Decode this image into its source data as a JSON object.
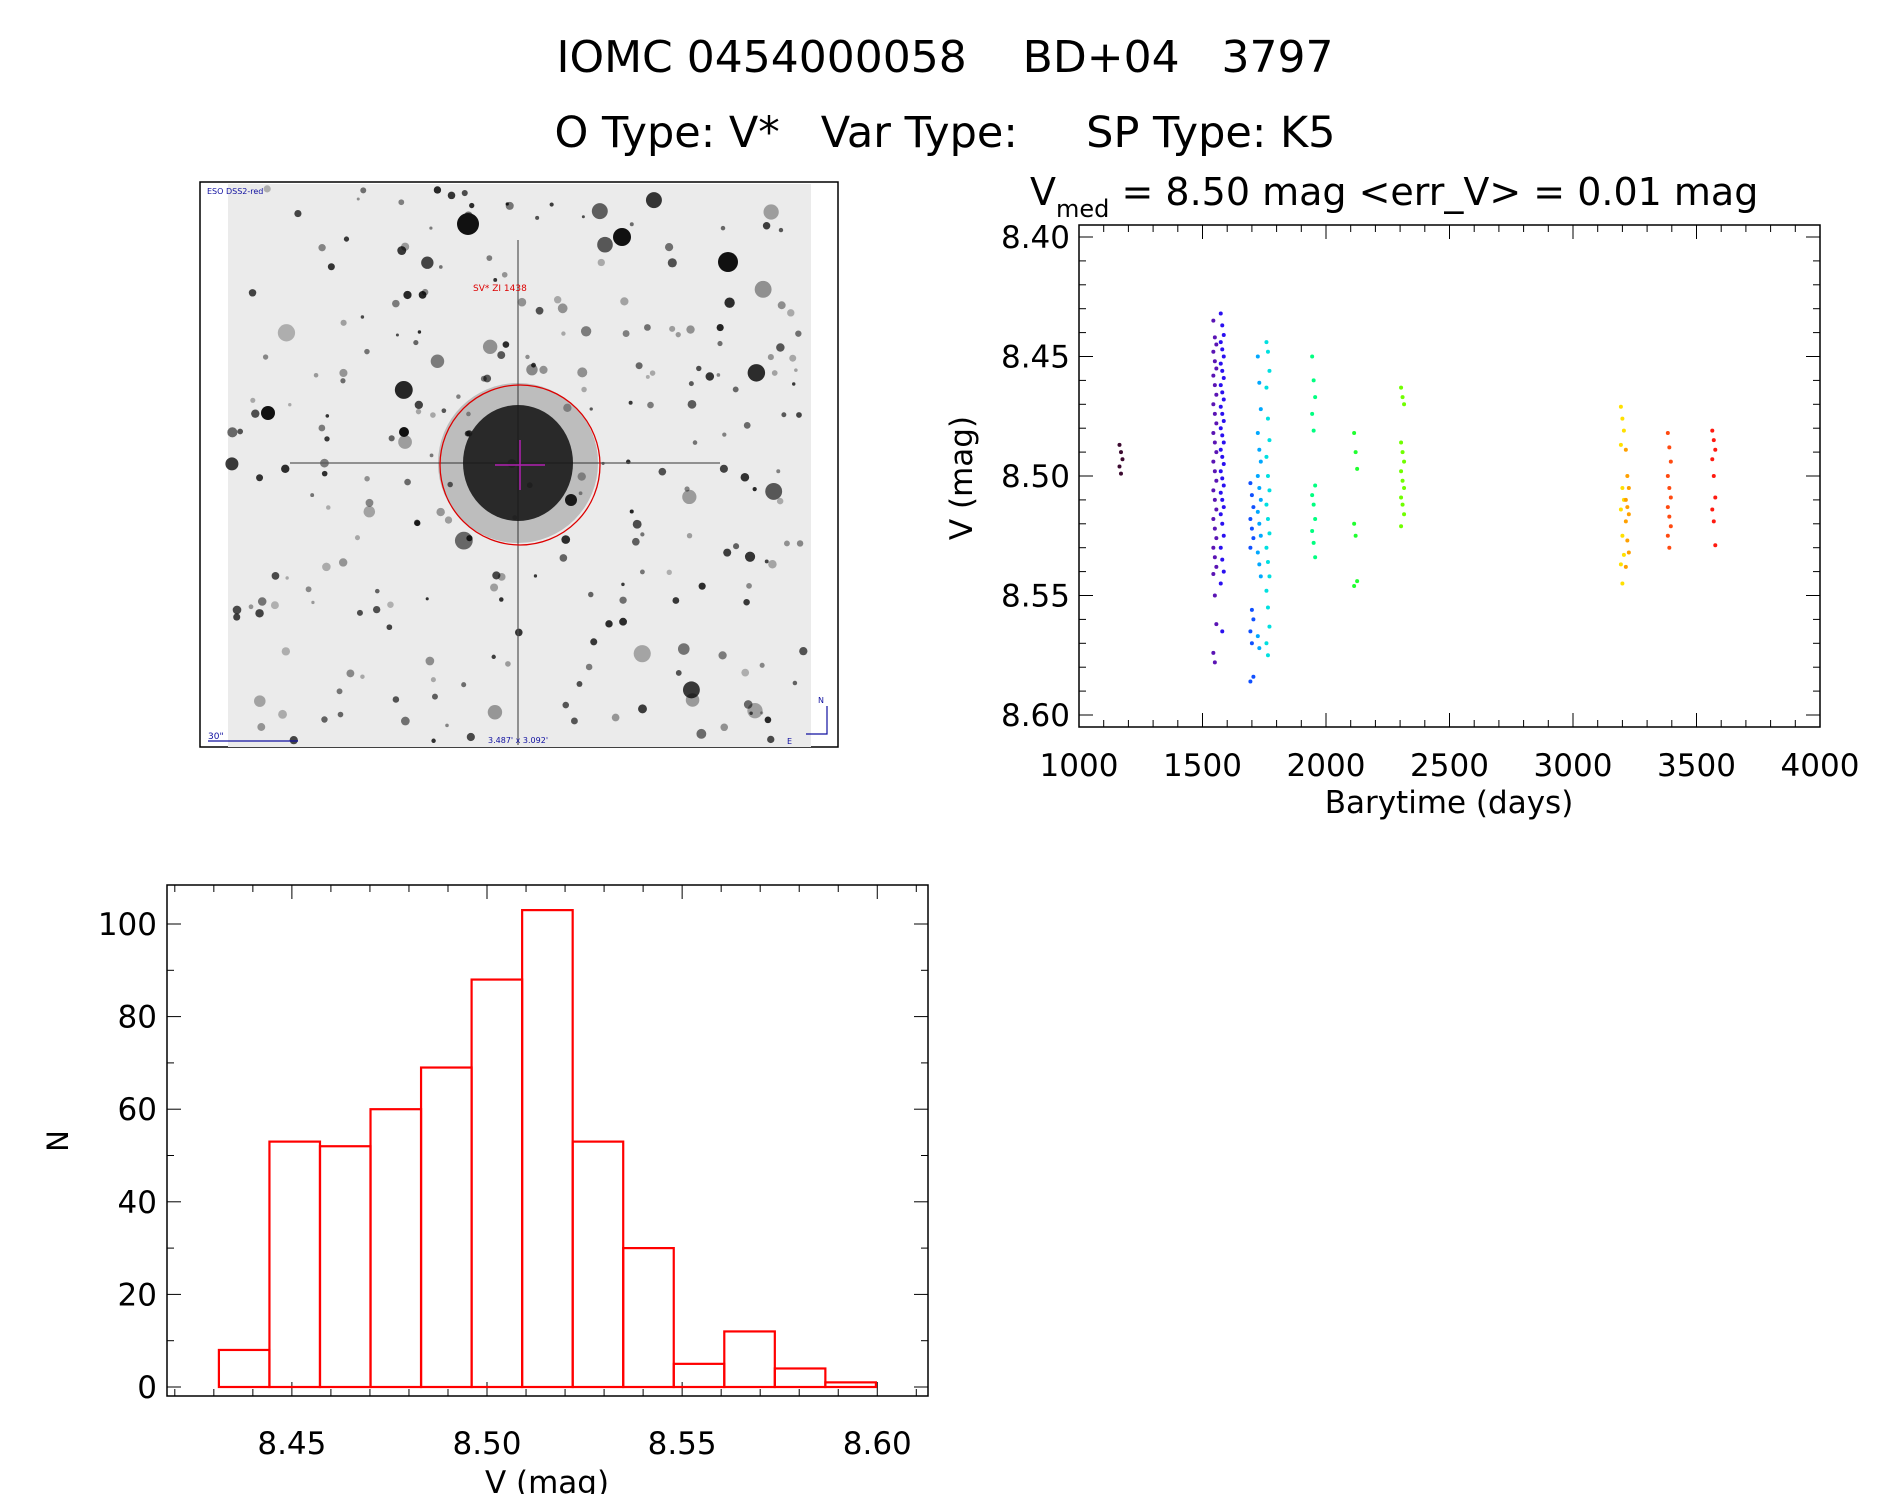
{
  "header": {
    "title": "IOMC 0454000058    BD+04   3797",
    "subtitle": "O Type: V*   Var Type:     SP Type: K5"
  },
  "image_panel": {
    "survey_label": "ESO DSS2-red",
    "target_label": "SV* ZI 1438",
    "scale_label": "30\"",
    "fov_label": "3.487' x 3.092'",
    "north_label": "N",
    "east_label": "E"
  },
  "chart_data": [
    {
      "type": "scatter",
      "title_prefix": "V",
      "title_sub": "med",
      "title_rest": " = 8.50 mag <err_V> = 0.01 mag",
      "xlabel": "Barytime (days)",
      "ylabel": "V (mag)",
      "xlim": [
        1000,
        4000
      ],
      "ylim": [
        8.6,
        8.4
      ],
      "xticks": [
        "1000",
        "1500",
        "2000",
        "2500",
        "3000",
        "3500",
        "4000"
      ],
      "yticks": [
        "8.40",
        "8.45",
        "8.50",
        "8.55",
        "8.60"
      ],
      "series": [
        {
          "x": 1170,
          "color": "#3c0a30",
          "y": [
            8.487,
            8.49,
            8.493,
            8.496,
            8.499
          ]
        },
        {
          "x": 1550,
          "color": "#5a14b4",
          "y": [
            8.435,
            8.442,
            8.445,
            8.448,
            8.452,
            8.455,
            8.458,
            8.462,
            8.466,
            8.47,
            8.474,
            8.478,
            8.482,
            8.486,
            8.49,
            8.494,
            8.498,
            8.502,
            8.506,
            8.51,
            8.514,
            8.518,
            8.522,
            8.526,
            8.53,
            8.534,
            8.538,
            8.541,
            8.55,
            8.562,
            8.574,
            8.578
          ]
        },
        {
          "x": 1580,
          "color": "#2a10f0",
          "y": [
            8.432,
            8.437,
            8.441,
            8.444,
            8.447,
            8.45,
            8.453,
            8.456,
            8.459,
            8.462,
            8.465,
            8.468,
            8.471,
            8.474,
            8.477,
            8.48,
            8.483,
            8.486,
            8.489,
            8.492,
            8.495,
            8.498,
            8.501,
            8.504,
            8.507,
            8.51,
            8.513,
            8.516,
            8.52,
            8.525,
            8.53,
            8.535,
            8.54,
            8.545,
            8.565
          ]
        },
        {
          "x": 1700,
          "color": "#1050ff",
          "y": [
            8.503,
            8.508,
            8.513,
            8.518,
            8.522,
            8.526,
            8.53,
            8.556,
            8.56,
            8.565,
            8.57,
            8.584,
            8.586
          ]
        },
        {
          "x": 1730,
          "color": "#00a8ff",
          "y": [
            8.45,
            8.461,
            8.472,
            8.482,
            8.489,
            8.494,
            8.5,
            8.505,
            8.51,
            8.515,
            8.52,
            8.525,
            8.532,
            8.537,
            8.542,
            8.567,
            8.572
          ]
        },
        {
          "x": 1765,
          "color": "#00e0e0",
          "y": [
            8.444,
            8.448,
            8.456,
            8.463,
            8.476,
            8.485,
            8.492,
            8.5,
            8.506,
            8.512,
            8.518,
            8.524,
            8.53,
            8.536,
            8.542,
            8.548,
            8.555,
            8.563,
            8.57,
            8.575
          ]
        },
        {
          "x": 1950,
          "color": "#00ff80",
          "y": [
            8.45,
            8.46,
            8.467,
            8.474,
            8.481,
            8.504,
            8.508,
            8.512,
            8.518,
            8.523,
            8.528,
            8.534
          ]
        },
        {
          "x": 2120,
          "color": "#20ff30",
          "y": [
            8.482,
            8.49,
            8.497,
            8.52,
            8.525,
            8.544,
            8.546
          ]
        },
        {
          "x": 2310,
          "color": "#70ff00",
          "y": [
            8.463,
            8.467,
            8.47,
            8.486,
            8.49,
            8.494,
            8.498,
            8.502,
            8.505,
            8.509,
            8.512,
            8.516,
            8.521
          ]
        },
        {
          "x": 3200,
          "color": "#ffe000",
          "y": [
            8.471,
            8.476,
            8.481,
            8.487,
            8.505,
            8.51,
            8.514,
            8.525,
            8.533,
            8.537,
            8.545
          ]
        },
        {
          "x": 3220,
          "color": "#ffa000",
          "y": [
            8.489,
            8.5,
            8.505,
            8.51,
            8.513,
            8.516,
            8.519,
            8.527,
            8.532,
            8.538
          ]
        },
        {
          "x": 3390,
          "color": "#ff4a10",
          "y": [
            8.482,
            8.488,
            8.494,
            8.5,
            8.505,
            8.509,
            8.513,
            8.517,
            8.521,
            8.525,
            8.53
          ]
        },
        {
          "x": 3570,
          "color": "#ff1a10",
          "y": [
            8.481,
            8.485,
            8.489,
            8.493,
            8.5,
            8.509,
            8.514,
            8.519,
            8.529
          ]
        }
      ]
    },
    {
      "type": "bar",
      "subtype": "histogram",
      "xlabel": "V (mag)",
      "ylabel": "N",
      "xlim": [
        8.418,
        8.613
      ],
      "ylim": [
        0,
        108
      ],
      "xticks": [
        "8.45",
        "8.50",
        "8.55",
        "8.60"
      ],
      "yticks": [
        "0",
        "20",
        "40",
        "60",
        "80",
        "100"
      ],
      "bin_start": 8.4313,
      "bin_width": 0.01295,
      "values": [
        8,
        53,
        52,
        60,
        69,
        88,
        103,
        53,
        30,
        5,
        12,
        4,
        1
      ],
      "color": "#ff0000"
    }
  ]
}
